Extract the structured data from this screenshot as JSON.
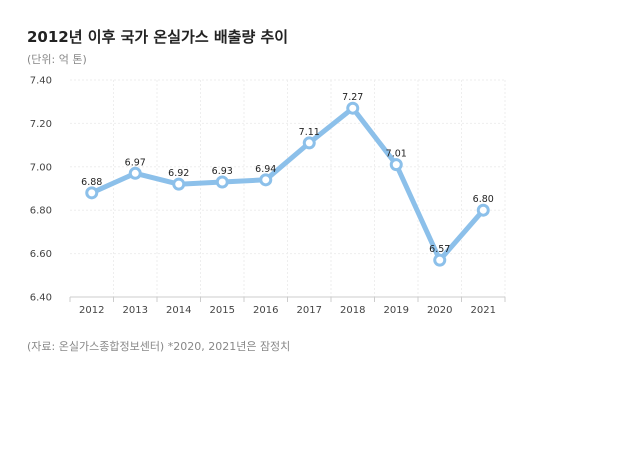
{
  "header": {
    "title": "2012년 이후 국가 온실가스 배출량 추이",
    "unit": "(단위: 억 톤)"
  },
  "footer": {
    "source": "(자료: 온실가스종합정보센터) *2020, 2021년은 잠정치"
  },
  "colors": {
    "line": "#8cc0ea",
    "marker_fill": "#ffffff",
    "grid": "#eeeeee",
    "axis": "#cccccc"
  },
  "chart_data": {
    "type": "line",
    "title": "2012년 이후 국가 온실가스 배출량 추이",
    "ylabel": "(단위: 억 톤)",
    "xlabel": "",
    "categories": [
      "2012",
      "2013",
      "2014",
      "2015",
      "2016",
      "2017",
      "2018",
      "2019",
      "2020",
      "2021"
    ],
    "series": [
      {
        "values": [
          6.88,
          6.97,
          6.92,
          6.93,
          6.94,
          7.11,
          7.27,
          7.01,
          6.57,
          6.8
        ]
      }
    ],
    "ylim": [
      6.4,
      7.4
    ],
    "yticks": [
      "6.40",
      "6.60",
      "6.80",
      "7.00",
      "7.20",
      "7.40"
    ],
    "data_labels": [
      "6.88",
      "6.97",
      "6.92",
      "6.93",
      "6.94",
      "7.11",
      "7.27",
      "7.01",
      "6.57",
      "6.80"
    ],
    "grid": true,
    "legend": "none"
  }
}
